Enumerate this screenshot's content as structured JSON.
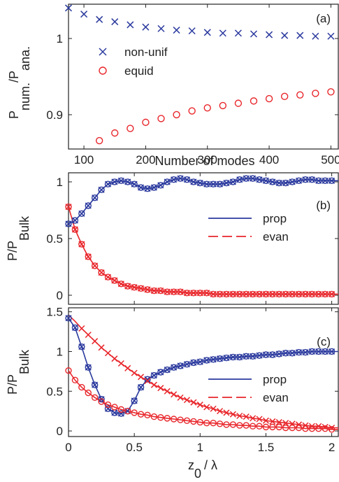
{
  "chart_data": [
    {
      "type": "scatter",
      "panel_label": "(a)",
      "xlabel": "Number of modes",
      "ylabel_main": "P",
      "ylabel_sub1": "num.",
      "ylabel_mid": "/P",
      "ylabel_sub2": "ana.",
      "xlim": [
        75,
        512
      ],
      "ylim": [
        0.855,
        1.045
      ],
      "xticks": [
        100,
        200,
        300,
        400,
        500
      ],
      "xtick_labels": [
        "100",
        "200",
        "300",
        "400",
        "500"
      ],
      "yticks": [
        0.9,
        1.0
      ],
      "ytick_labels": [
        "0.9",
        "1"
      ],
      "legend_position": "upper-left",
      "series": [
        {
          "name": "non-unif",
          "marker": "x",
          "color": "#2b3a9e",
          "x": [
            75,
            100,
            125,
            150,
            175,
            200,
            225,
            250,
            275,
            300,
            325,
            350,
            375,
            400,
            425,
            450,
            475,
            500
          ],
          "y": [
            1.04,
            1.032,
            1.025,
            1.022,
            1.018,
            1.015,
            1.013,
            1.011,
            1.01,
            1.008,
            1.007,
            1.007,
            1.006,
            1.005,
            1.004,
            1.004,
            1.003,
            1.003
          ]
        },
        {
          "name": "equid",
          "marker": "o",
          "color": "#e8262b",
          "x": [
            125,
            150,
            175,
            200,
            225,
            250,
            275,
            300,
            325,
            350,
            375,
            400,
            425,
            450,
            475,
            500
          ],
          "y": [
            0.866,
            0.876,
            0.882,
            0.89,
            0.895,
            0.9,
            0.905,
            0.909,
            0.912,
            0.915,
            0.918,
            0.921,
            0.924,
            0.926,
            0.928,
            0.93
          ]
        }
      ]
    },
    {
      "type": "line",
      "panel_label": "(b)",
      "ylabel_main": "P/P",
      "ylabel_sub": "Bulk",
      "xlim": [
        0,
        2.05
      ],
      "ylim": [
        -0.08,
        1.08
      ],
      "xticks": [
        0,
        0.5,
        1,
        1.5,
        2
      ],
      "yticks": [
        0,
        0.5,
        1
      ],
      "ytick_labels": [
        "0",
        "0.5",
        "1"
      ],
      "legend_position": "center-right",
      "series": [
        {
          "name": "prop",
          "style": "solid",
          "color": "#2b3a9e",
          "x": [
            0.0,
            0.05,
            0.1,
            0.15,
            0.2,
            0.25,
            0.3,
            0.35,
            0.4,
            0.45,
            0.5,
            0.55,
            0.6,
            0.65,
            0.7,
            0.75,
            0.8,
            0.85,
            0.9,
            0.95,
            1.0,
            1.05,
            1.1,
            1.15,
            1.2,
            1.25,
            1.3,
            1.35,
            1.4,
            1.45,
            1.5,
            1.55,
            1.6,
            1.65,
            1.7,
            1.75,
            1.8,
            1.85,
            1.9,
            1.95,
            2.0,
            2.05
          ],
          "y": [
            0.63,
            0.66,
            0.72,
            0.79,
            0.86,
            0.93,
            0.98,
            1.0,
            1.01,
            1.0,
            0.98,
            0.95,
            0.94,
            0.95,
            0.97,
            1.0,
            1.02,
            1.03,
            1.02,
            1.0,
            0.99,
            0.98,
            0.98,
            0.98,
            0.99,
            1.0,
            1.02,
            1.03,
            1.03,
            1.02,
            1.01,
            1.0,
            0.99,
            0.99,
            1.0,
            1.01,
            1.02,
            1.02,
            1.01,
            1.01,
            1.01,
            1.01
          ]
        },
        {
          "name": "evan",
          "style": "dashed",
          "color": "#e8262b",
          "x": [
            0.0,
            0.05,
            0.1,
            0.15,
            0.2,
            0.25,
            0.3,
            0.35,
            0.4,
            0.45,
            0.5,
            0.55,
            0.6,
            0.65,
            0.7,
            0.75,
            0.8,
            0.85,
            0.9,
            0.95,
            1.0,
            1.05,
            1.1,
            1.15,
            1.2,
            1.25,
            1.3,
            1.35,
            1.4,
            1.45,
            1.5,
            1.55,
            1.6,
            1.65,
            1.7,
            1.75,
            1.8,
            1.85,
            1.9,
            1.95,
            2.0,
            2.05
          ],
          "y": [
            0.78,
            0.58,
            0.45,
            0.34,
            0.26,
            0.2,
            0.16,
            0.13,
            0.1,
            0.08,
            0.07,
            0.06,
            0.05,
            0.04,
            0.04,
            0.03,
            0.03,
            0.03,
            0.02,
            0.02,
            0.02,
            0.02,
            0.01,
            0.01,
            0.01,
            0.01,
            0.01,
            0.01,
            0.01,
            0.01,
            0.01,
            0.01,
            0.01,
            0.01,
            0.01,
            0.01,
            0.01,
            0.01,
            0.01,
            0.01,
            0.01,
            0.01
          ]
        }
      ],
      "marker_series": [
        {
          "color": "#2b3a9e",
          "markers": [
            "x",
            "o"
          ],
          "follows": "prop"
        },
        {
          "color": "#e8262b",
          "markers": [
            "x",
            "o"
          ],
          "follows": "evan"
        }
      ]
    },
    {
      "type": "line",
      "panel_label": "(c)",
      "xlabel_main": "z",
      "xlabel_sub": "0",
      "xlabel_rest": "/ λ",
      "ylabel_main": "P/P",
      "ylabel_sub": "Bulk",
      "xlim": [
        0,
        2.05
      ],
      "ylim": [
        -0.07,
        1.55
      ],
      "xticks": [
        0,
        0.5,
        1,
        1.5,
        2
      ],
      "xtick_labels": [
        "0",
        "0.5",
        "1",
        "1.5",
        "2"
      ],
      "yticks": [
        0,
        0.5,
        1,
        1.5
      ],
      "ytick_labels": [
        "0",
        "0.5",
        "1",
        "1.5"
      ],
      "legend_position": "center-right",
      "series": [
        {
          "name": "prop",
          "style": "solid",
          "color": "#2b3a9e",
          "x": [
            0.0,
            0.05,
            0.1,
            0.15,
            0.2,
            0.25,
            0.3,
            0.35,
            0.4,
            0.45,
            0.5,
            0.55,
            0.6,
            0.65,
            0.7,
            0.75,
            0.8,
            0.85,
            0.9,
            0.95,
            1.0,
            1.05,
            1.1,
            1.15,
            1.2,
            1.25,
            1.3,
            1.35,
            1.4,
            1.45,
            1.5,
            1.55,
            1.6,
            1.65,
            1.7,
            1.75,
            1.8,
            1.85,
            1.9,
            1.95,
            2.0,
            2.05
          ],
          "y": [
            1.42,
            1.3,
            1.06,
            0.8,
            0.58,
            0.4,
            0.28,
            0.23,
            0.22,
            0.25,
            0.38,
            0.55,
            0.65,
            0.7,
            0.74,
            0.77,
            0.8,
            0.82,
            0.84,
            0.86,
            0.87,
            0.89,
            0.9,
            0.91,
            0.92,
            0.93,
            0.93,
            0.94,
            0.94,
            0.95,
            0.96,
            0.96,
            0.97,
            0.98,
            0.98,
            0.99,
            0.99,
            1.0,
            1.0,
            1.0,
            1.0,
            1.0
          ]
        },
        {
          "name": "evan",
          "style": "dashed",
          "color": "#e8262b",
          "x": [
            0.0,
            0.05,
            0.1,
            0.15,
            0.2,
            0.25,
            0.3,
            0.35,
            0.4,
            0.45,
            0.5,
            0.55,
            0.6,
            0.65,
            0.7,
            0.75,
            0.8,
            0.85,
            0.9,
            0.95,
            1.0,
            1.05,
            1.1,
            1.15,
            1.2,
            1.25,
            1.3,
            1.35,
            1.4,
            1.45,
            1.5,
            1.55,
            1.6,
            1.65,
            1.7,
            1.75,
            1.8,
            1.85,
            1.9,
            1.95,
            2.0,
            2.05
          ],
          "y": [
            0.76,
            0.64,
            0.55,
            0.48,
            0.42,
            0.37,
            0.33,
            0.3,
            0.27,
            0.25,
            0.23,
            0.21,
            0.2,
            0.18,
            0.17,
            0.16,
            0.15,
            0.14,
            0.13,
            0.12,
            0.11,
            0.1,
            0.1,
            0.09,
            0.08,
            0.08,
            0.07,
            0.07,
            0.06,
            0.06,
            0.05,
            0.05,
            0.05,
            0.04,
            0.04,
            0.04,
            0.03,
            0.03,
            0.03,
            0.03,
            0.02,
            0.02
          ]
        },
        {
          "name": "",
          "style": "solid",
          "color": "#e8262b",
          "x": [
            0.0,
            0.05,
            0.1,
            0.15,
            0.2,
            0.25,
            0.3,
            0.35,
            0.4,
            0.45,
            0.5,
            0.55,
            0.6,
            0.65,
            0.7,
            0.75,
            0.8,
            0.85,
            0.9,
            0.95,
            1.0,
            1.05,
            1.1,
            1.15,
            1.2,
            1.25,
            1.3,
            1.35,
            1.4,
            1.45,
            1.5,
            1.55,
            1.6,
            1.65,
            1.7,
            1.75,
            1.8,
            1.85,
            1.9,
            1.95,
            2.0,
            2.05
          ],
          "y": [
            1.46,
            1.38,
            1.29,
            1.21,
            1.13,
            1.05,
            0.98,
            0.91,
            0.85,
            0.79,
            0.73,
            0.68,
            0.63,
            0.58,
            0.54,
            0.5,
            0.46,
            0.42,
            0.39,
            0.36,
            0.33,
            0.3,
            0.28,
            0.25,
            0.23,
            0.21,
            0.19,
            0.18,
            0.16,
            0.15,
            0.13,
            0.12,
            0.11,
            0.1,
            0.09,
            0.08,
            0.07,
            0.06,
            0.06,
            0.05,
            0.04,
            0.04
          ]
        }
      ],
      "marker_series": [
        {
          "color": "#2b3a9e",
          "markers": [
            "x",
            "o"
          ],
          "follows": 0
        },
        {
          "color": "#e8262b",
          "markers": [
            "o"
          ],
          "follows": 1
        },
        {
          "color": "#e8262b",
          "markers": [
            "x"
          ],
          "follows": 2,
          "x_from": 0.1
        }
      ]
    }
  ]
}
